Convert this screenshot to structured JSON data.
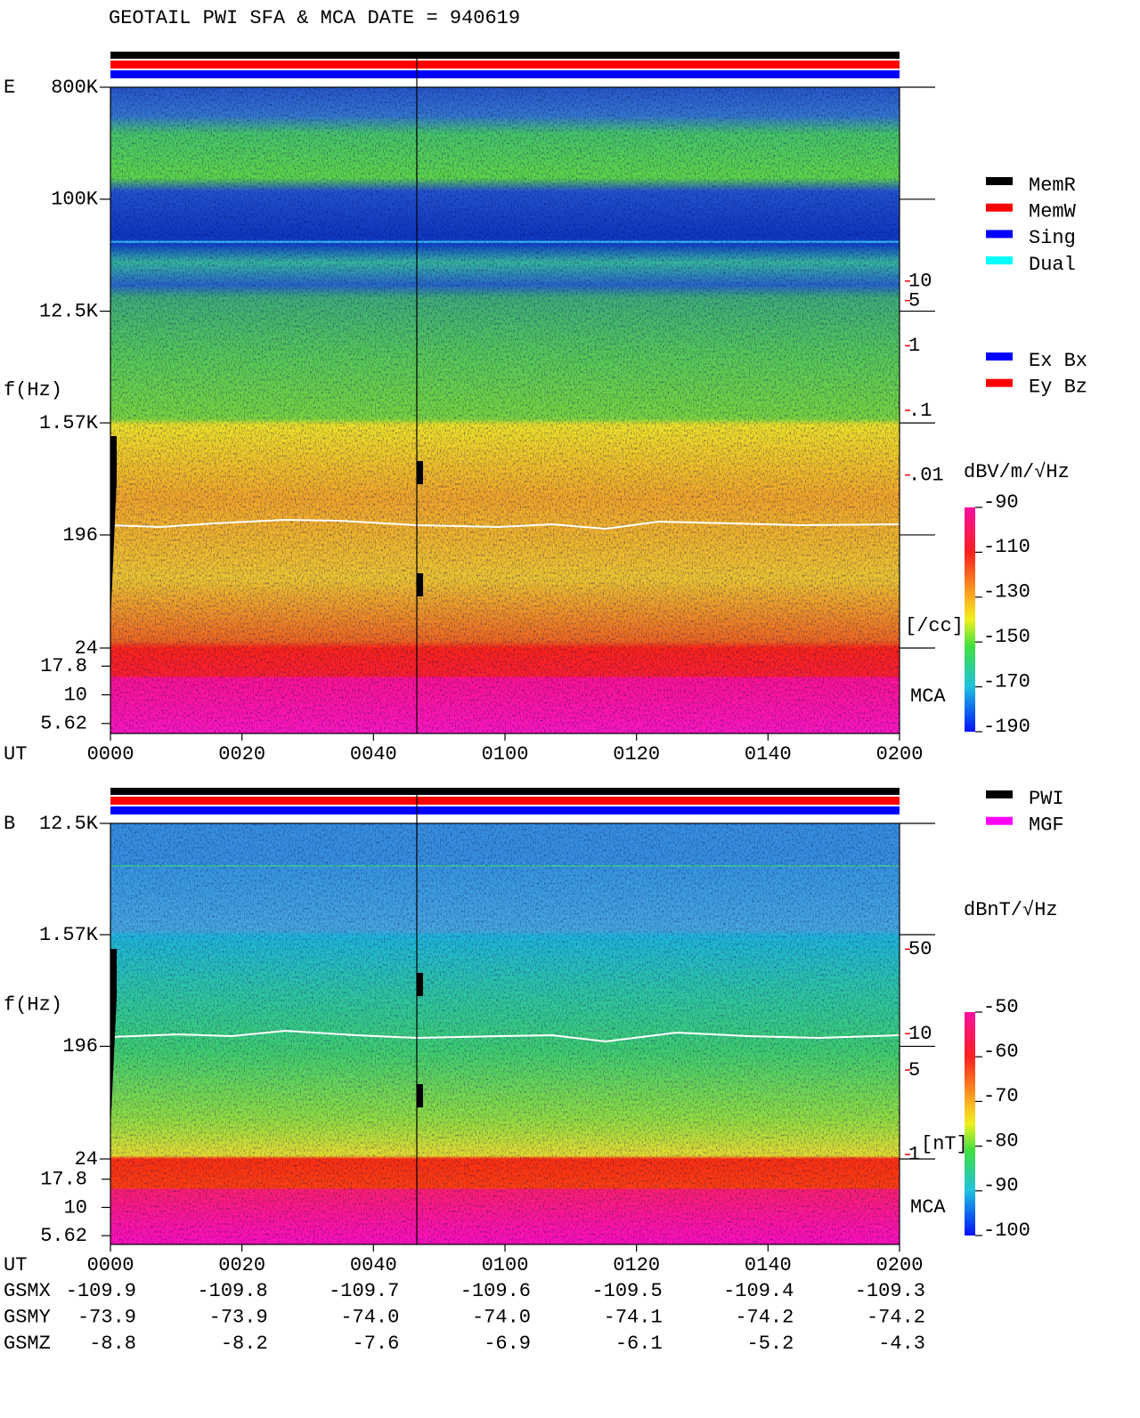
{
  "title": "GEOTAIL  PWI SFA & MCA   DATE = 940619",
  "chart_data": [
    {
      "type": "spectrogram",
      "label": "E",
      "ylabel": "f(Hz)",
      "xlabel": "UT",
      "log_y": true,
      "ylim": [
        24,
        800000
      ],
      "yticks": [
        {
          "value": 800000,
          "label": "800K"
        },
        {
          "value": 100000,
          "label": "100K"
        },
        {
          "value": 12500,
          "label": "12.5K"
        },
        {
          "value": 1570,
          "label": "1.57K"
        },
        196,
        24
      ],
      "mca_label": "MCA",
      "mca_ylim": [
        4.6,
        25.6
      ],
      "mca_yticks": [
        17.8,
        10,
        5.62
      ],
      "xlim": [
        0,
        120
      ],
      "xticks": [
        {
          "value": 0,
          "label": "0000"
        },
        {
          "value": 20,
          "label": "0020"
        },
        {
          "value": 40,
          "label": "0040"
        },
        {
          "value": 60,
          "label": "0100"
        },
        {
          "value": 80,
          "label": "0120"
        },
        {
          "value": 100,
          "label": "0140"
        },
        {
          "value": 120,
          "label": "0200"
        }
      ],
      "y2lim": [
        1e-06,
        10000
      ],
      "y2color": "#ff0000",
      "y2label": "[/cc]",
      "y2ticks": [
        10,
        5,
        1,
        {
          "value": 0.1,
          "label": ".1"
        },
        {
          "value": 0.01,
          "label": ".01"
        }
      ],
      "colorbar": {
        "label": "dBV/m/√Hz",
        "zlim": [
          -190,
          -90
        ],
        "ticks": [
          -90,
          -110,
          -130,
          -150,
          -170,
          -190
        ]
      },
      "legend": [
        {
          "name": "MemR",
          "color": "#000000"
        },
        {
          "name": "MemW",
          "color": "#ff0000"
        },
        {
          "name": "Sing",
          "color": "#0000ff"
        },
        {
          "name": "Dual",
          "color": "#00ffff"
        }
      ],
      "legend2": [
        {
          "name": "Ex Bx",
          "color": "#0000ff"
        },
        {
          "name": "Ey Bz",
          "color": "#ff0000"
        }
      ]
    },
    {
      "type": "spectrogram",
      "label": "B",
      "ylabel": "f(Hz)",
      "xlabel": "UT",
      "log_y": true,
      "ylim": [
        24,
        12500
      ],
      "yticks": [
        {
          "value": 12500,
          "label": "12.5K"
        },
        {
          "value": 1570,
          "label": "1.57K"
        },
        196,
        24
      ],
      "mca_label": "MCA",
      "mca_ylim": [
        4.7,
        26.9
      ],
      "mca_yticks": [
        17.8,
        10,
        5.62
      ],
      "xlim": [
        0,
        120
      ],
      "xticks": [
        {
          "value": 0,
          "label": "0000"
        },
        {
          "value": 20,
          "label": "0020"
        },
        {
          "value": 40,
          "label": "0040"
        },
        {
          "value": 60,
          "label": "0100"
        },
        {
          "value": 80,
          "label": "0120"
        },
        {
          "value": 100,
          "label": "0140"
        },
        {
          "value": 120,
          "label": "0200"
        }
      ],
      "y2lim": [
        0.18,
        550
      ],
      "y2color": "#ff0000",
      "y2label": "[nT]",
      "y2ticks": [
        50,
        10,
        5,
        1
      ],
      "colorbar": {
        "label": "dBnT/√Hz",
        "zlim": [
          -100,
          -50
        ],
        "ticks": [
          -50,
          -60,
          -70,
          -80,
          -90,
          -100
        ]
      },
      "legend": [
        {
          "name": "PWI",
          "color": "#000000"
        },
        {
          "name": "MGF",
          "color": "#ff00ff"
        }
      ]
    }
  ],
  "ephemeris": {
    "rows": [
      {
        "label": "GSMX",
        "values": [
          "-109.9",
          "-109.8",
          "-109.7",
          "-109.6",
          "-109.5",
          "-109.4",
          "-109.3"
        ]
      },
      {
        "label": "GSMY",
        "values": [
          "-73.9",
          "-73.9",
          "-74.0",
          "-74.0",
          "-74.1",
          "-74.2",
          "-74.2"
        ]
      },
      {
        "label": "GSMZ",
        "values": [
          "-8.8",
          "-8.2",
          "-7.6",
          "-6.9",
          "-6.1",
          "-5.2",
          "-4.3"
        ]
      }
    ]
  }
}
